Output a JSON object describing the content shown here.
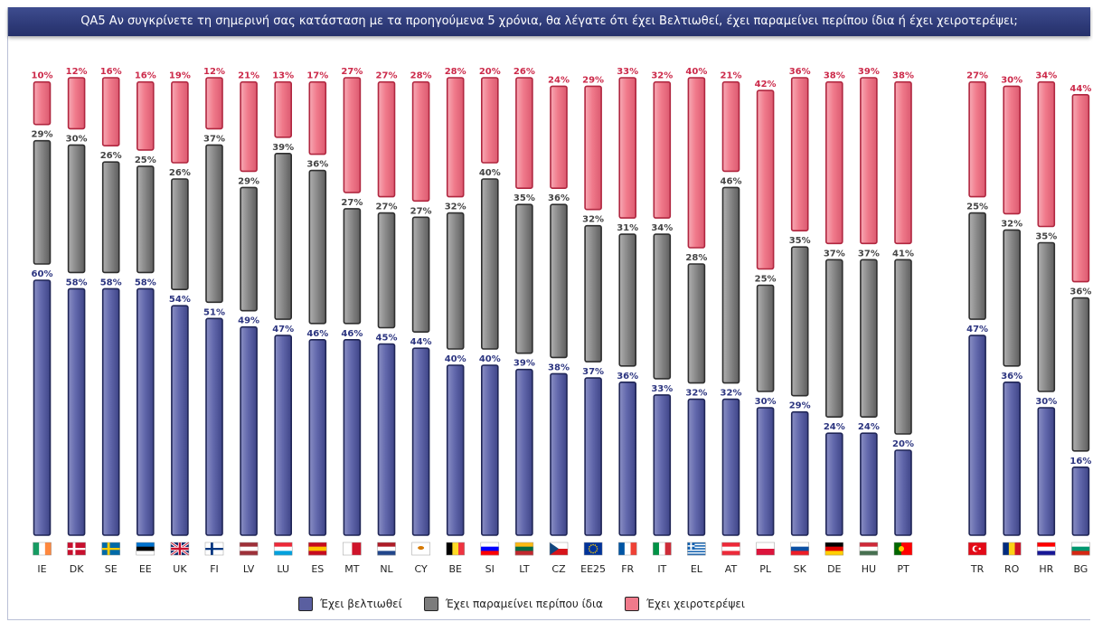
{
  "title": "QA5 Αν συγκρίνετε τη σημερινή σας κατάσταση με τα προηγούμενα 5 χρόνια, θα λέγατε ότι έχει Βελτιωθεί, έχει παραμείνει περίπου ίδια ή έχει χειροτερέψει;",
  "colors": {
    "improved": "#5a5fa0",
    "same": "#7c7c7c",
    "worse": "#f07a8b",
    "title_bg": "#2e3a78"
  },
  "legend": [
    {
      "label": "Έχει βελτιωθεί",
      "color": "#5a5fa0"
    },
    {
      "label": "Έχει παραμείνει περίπου ίδια",
      "color": "#7c7c7c"
    },
    {
      "label": "Έχει χειροτερέψει",
      "color": "#f07a8b"
    }
  ],
  "chart_data": {
    "type": "bar",
    "categories": [
      "IE",
      "DK",
      "SE",
      "EE",
      "UK",
      "FI",
      "LV",
      "LU",
      "ES",
      "MT",
      "NL",
      "CY",
      "BE",
      "SI",
      "LT",
      "CZ",
      "EE25",
      "FR",
      "IT",
      "EL",
      "AT",
      "PL",
      "SK",
      "DE",
      "HU",
      "PT",
      "TR",
      "RO",
      "HR",
      "BG"
    ],
    "series": [
      {
        "name": "Έχει βελτιωθεί",
        "values": [
          60,
          58,
          58,
          58,
          54,
          51,
          49,
          47,
          46,
          46,
          45,
          44,
          40,
          40,
          39,
          38,
          37,
          36,
          33,
          32,
          32,
          30,
          29,
          24,
          24,
          20,
          47,
          36,
          30,
          16
        ]
      },
      {
        "name": "Έχει παραμείνει περίπου ίδια",
        "values": [
          29,
          30,
          26,
          25,
          26,
          37,
          29,
          39,
          36,
          27,
          27,
          27,
          32,
          40,
          35,
          36,
          32,
          31,
          34,
          28,
          46,
          25,
          35,
          37,
          37,
          41,
          25,
          32,
          35,
          36
        ]
      },
      {
        "name": "Έχει χειροτερέψει",
        "values": [
          10,
          12,
          16,
          16,
          19,
          12,
          21,
          13,
          17,
          27,
          27,
          28,
          28,
          20,
          26,
          24,
          29,
          33,
          32,
          40,
          21,
          42,
          36,
          38,
          39,
          38,
          27,
          30,
          34,
          44
        ]
      }
    ],
    "value_suffix": "%"
  },
  "flags": {
    "IE": [
      "#169b62",
      "#ffffff",
      "#ff883e",
      "v"
    ],
    "DK": [
      "#c8102e",
      "#ffffff",
      "nordic"
    ],
    "SE": [
      "#006aa7",
      "#fecc00",
      "nordic"
    ],
    "EE": [
      "#0072ce",
      "#000000",
      "#ffffff",
      "h"
    ],
    "UK": [
      "#012169",
      "#ffffff",
      "#c8102e",
      "uk"
    ],
    "FI": [
      "#ffffff",
      "#003580",
      "nordic"
    ],
    "LV": [
      "#9e3039",
      "#ffffff",
      "#9e3039",
      "h"
    ],
    "LU": [
      "#ed2939",
      "#ffffff",
      "#00a1de",
      "h"
    ],
    "ES": [
      "#c60b1e",
      "#ffc400",
      "#c60b1e",
      "h"
    ],
    "MT": [
      "#ffffff",
      "#cf142b",
      "v2"
    ],
    "NL": [
      "#ae1c28",
      "#ffffff",
      "#21468b",
      "h"
    ],
    "CY": [
      "#ffffff",
      "#d57800",
      "cy"
    ],
    "BE": [
      "#000000",
      "#fdda24",
      "#ef3340",
      "v"
    ],
    "SI": [
      "#ffffff",
      "#0000ff",
      "#ff0000",
      "h"
    ],
    "LT": [
      "#fdb913",
      "#006a44",
      "#c1272d",
      "h"
    ],
    "CZ": [
      "#ffffff",
      "#d7141a",
      "#11457e",
      "cz"
    ],
    "EE25": [
      "#003399",
      "#ffcc00",
      "eu"
    ],
    "FR": [
      "#0055a4",
      "#ffffff",
      "#ef4135",
      "v"
    ],
    "IT": [
      "#009246",
      "#ffffff",
      "#ce2b37",
      "v"
    ],
    "EL": [
      "#0d5eaf",
      "#ffffff",
      "gr"
    ],
    "AT": [
      "#ed2939",
      "#ffffff",
      "#ed2939",
      "h"
    ],
    "PL": [
      "#ffffff",
      "#dc143c",
      "h2"
    ],
    "SK": [
      "#ffffff",
      "#0b4ea2",
      "#ee1c25",
      "h"
    ],
    "DE": [
      "#000000",
      "#dd0000",
      "#ffce00",
      "h"
    ],
    "HU": [
      "#ce2939",
      "#ffffff",
      "#477050",
      "h"
    ],
    "PT": [
      "#006600",
      "#ff0000",
      "pt"
    ],
    "TR": [
      "#e30a17",
      "#ffffff",
      "tr"
    ],
    "RO": [
      "#002b7f",
      "#fcd116",
      "#ce1126",
      "v"
    ],
    "HR": [
      "#ff0000",
      "#ffffff",
      "#171796",
      "h"
    ],
    "BG": [
      "#ffffff",
      "#00966e",
      "#d62612",
      "h"
    ]
  }
}
